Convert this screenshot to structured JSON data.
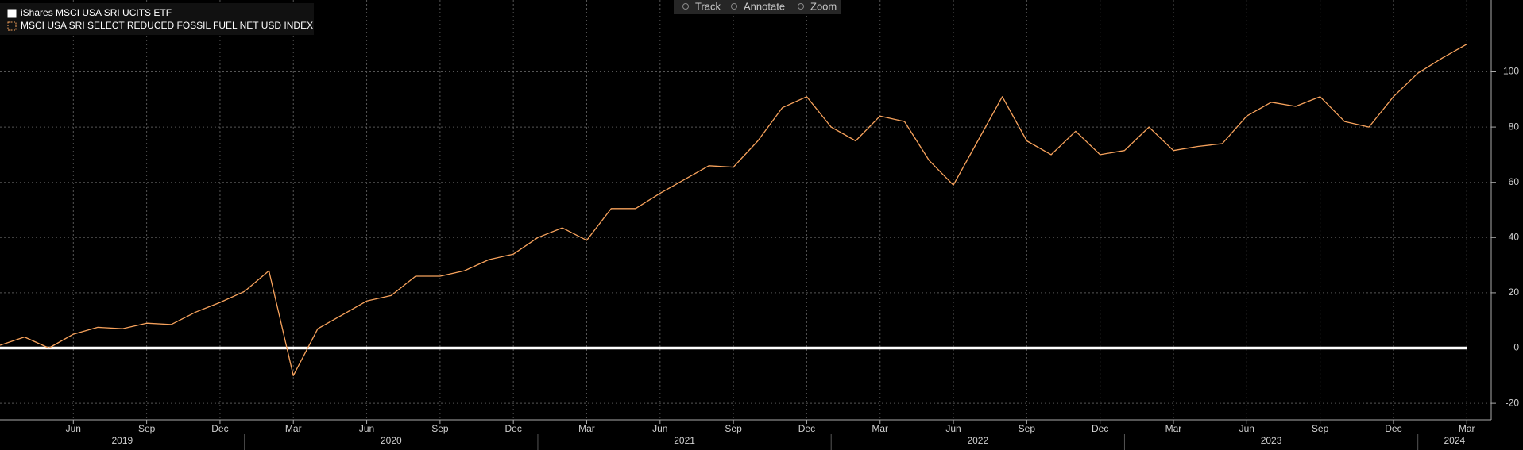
{
  "toolbar": [
    "Track",
    "Annotate",
    "Zoom"
  ],
  "chart_data": {
    "type": "line",
    "x": [
      "2019-03",
      "2019-04",
      "2019-05",
      "2019-06",
      "2019-07",
      "2019-08",
      "2019-09",
      "2019-10",
      "2019-11",
      "2019-12",
      "2020-01",
      "2020-02",
      "2020-03",
      "2020-04",
      "2020-05",
      "2020-06",
      "2020-07",
      "2020-08",
      "2020-09",
      "2020-10",
      "2020-11",
      "2020-12",
      "2021-01",
      "2021-02",
      "2021-03",
      "2021-04",
      "2021-05",
      "2021-06",
      "2021-07",
      "2021-08",
      "2021-09",
      "2021-10",
      "2021-11",
      "2021-12",
      "2022-01",
      "2022-02",
      "2022-03",
      "2022-04",
      "2022-05",
      "2022-06",
      "2022-07",
      "2022-08",
      "2022-09",
      "2022-10",
      "2022-11",
      "2022-12",
      "2023-01",
      "2023-02",
      "2023-03",
      "2023-04",
      "2023-05",
      "2023-06",
      "2023-07",
      "2023-08",
      "2023-09",
      "2023-10",
      "2023-11",
      "2023-12",
      "2024-01",
      "2024-02",
      "2024-03"
    ],
    "series": [
      {
        "name": "iShares MSCI USA SRI UCITS ETF",
        "color": "#ffffff",
        "values": [
          0,
          0,
          0,
          0,
          0,
          0,
          0,
          0,
          0,
          0,
          0,
          0,
          0,
          0,
          0,
          0,
          0,
          0,
          0,
          0,
          0,
          0,
          0,
          0,
          0,
          0,
          0,
          0,
          0,
          0,
          0,
          0,
          0,
          0,
          0,
          0,
          0,
          0,
          0,
          0,
          0,
          0,
          0,
          0,
          0,
          0,
          0,
          0,
          0,
          0,
          0,
          0,
          0,
          0,
          0,
          0,
          0,
          0,
          0,
          0,
          0
        ]
      },
      {
        "name": "MSCI USA SRI SELECT REDUCED FOSSIL FUEL NET USD INDEX",
        "color": "#f7a25c",
        "values": [
          1,
          4,
          0,
          5,
          7.5,
          7,
          9,
          8.5,
          13,
          16.5,
          20.5,
          28,
          -10,
          7,
          12,
          17,
          19,
          26,
          26,
          28,
          32,
          34,
          40,
          43.5,
          39,
          50.5,
          50.5,
          56,
          61,
          66,
          65.5,
          75,
          87,
          91,
          80,
          75,
          84,
          82,
          68,
          59,
          75,
          91,
          75,
          70,
          78.5,
          70,
          71.5,
          80,
          71.5,
          73,
          74,
          84,
          89,
          87.5,
          91,
          82,
          80,
          91,
          99.5,
          105,
          110
        ]
      }
    ],
    "xlim": [
      "2019-03",
      "2024-04"
    ],
    "xticks": [
      {
        "value": "2019-06",
        "label": "Jun"
      },
      {
        "value": "2019-09",
        "label": "Sep"
      },
      {
        "value": "2019-12",
        "label": "Dec"
      },
      {
        "value": "2020-03",
        "label": "Mar"
      },
      {
        "value": "2020-06",
        "label": "Jun"
      },
      {
        "value": "2020-09",
        "label": "Sep"
      },
      {
        "value": "2020-12",
        "label": "Dec"
      },
      {
        "value": "2021-03",
        "label": "Mar"
      },
      {
        "value": "2021-06",
        "label": "Jun"
      },
      {
        "value": "2021-09",
        "label": "Sep"
      },
      {
        "value": "2021-12",
        "label": "Dec"
      },
      {
        "value": "2022-03",
        "label": "Mar"
      },
      {
        "value": "2022-06",
        "label": "Jun"
      },
      {
        "value": "2022-09",
        "label": "Sep"
      },
      {
        "value": "2022-12",
        "label": "Dec"
      },
      {
        "value": "2023-03",
        "label": "Mar"
      },
      {
        "value": "2023-06",
        "label": "Jun"
      },
      {
        "value": "2023-09",
        "label": "Sep"
      },
      {
        "value": "2023-12",
        "label": "Dec"
      },
      {
        "value": "2024-03",
        "label": "Mar"
      }
    ],
    "year_labels": [
      2019,
      2020,
      2021,
      2022,
      2023,
      2024
    ],
    "ylim": [
      -26,
      126
    ],
    "yticks": [
      -20,
      0,
      20,
      40,
      60,
      80,
      100
    ],
    "grid": true,
    "legend": "top-left"
  }
}
